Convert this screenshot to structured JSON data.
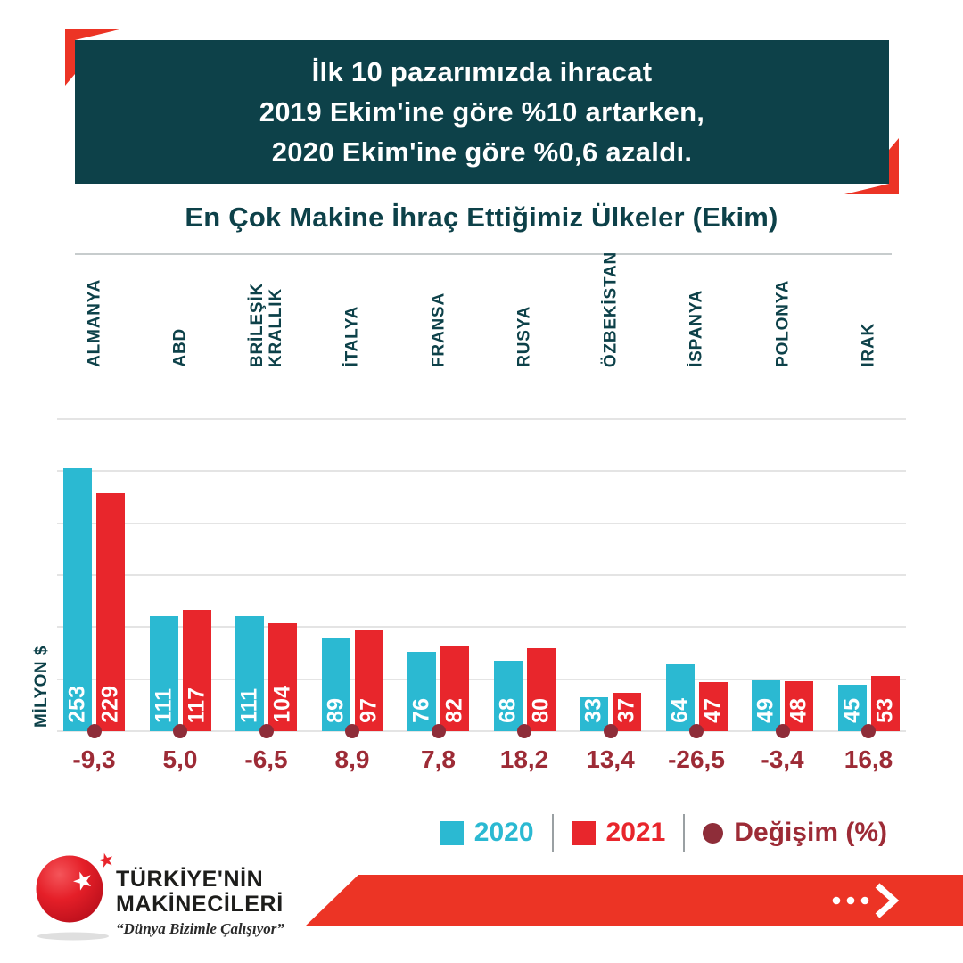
{
  "banner": {
    "lines": [
      "İlk 10 pazarımızda ihracat",
      "2019 Ekim'ine göre %10 artarken,",
      "2020 Ekim'ine göre %0,6 azaldı."
    ]
  },
  "chart_data": {
    "type": "bar",
    "title": "En Çok Makine İhraç Ettiğimiz Ülkeler (Ekim)",
    "xlabel": "",
    "ylabel": "MİLYON $",
    "categories": [
      "ALMANYA",
      "ABD",
      "BRİLEŞİK\nKRALLIK",
      "İTALYA",
      "FRANSA",
      "RUSYA",
      "ÖZBEKİSTAN",
      "İSPANYA",
      "POLONYA",
      "IRAK"
    ],
    "series": [
      {
        "name": "2020",
        "values": [
          253,
          111,
          111,
          89,
          76,
          68,
          33,
          64,
          49,
          45
        ]
      },
      {
        "name": "2021",
        "values": [
          229,
          117,
          104,
          97,
          82,
          80,
          37,
          47,
          48,
          53
        ]
      }
    ],
    "change_series": {
      "name": "Değişim (%)",
      "values": [
        "-9,3",
        "5,0",
        "-6,5",
        "8,9",
        "7,8",
        "18,2",
        "13,4",
        "-26,5",
        "-3,4",
        "16,8"
      ]
    },
    "ylim": [
      0,
      300
    ],
    "gridline_step": 50,
    "grid": true,
    "legend_position": "bottom-right",
    "value_labels": "inside-bar-bottom-rotated"
  },
  "footer": {
    "brand_line1": "TÜRKİYE'NİN",
    "brand_line2": "MAKİNECİLERİ",
    "tagline": "“Dünya Bizimle Çalışıyor”",
    "icons": [
      "red-globe-icon",
      "star-icon",
      "ellipsis-dots-icon",
      "chevron-right-icon"
    ]
  },
  "colors": {
    "teal": "#0d4149",
    "cyan": "#2bb9d2",
    "bar-red": "#e8262c",
    "accent-red": "#ec3425",
    "maroon": "#8e2d39",
    "maroon-text": "#9d2b36",
    "grid": "#e4e4e4",
    "rule": "#c7cccd",
    "legend-divider": "#9aa0a3"
  }
}
